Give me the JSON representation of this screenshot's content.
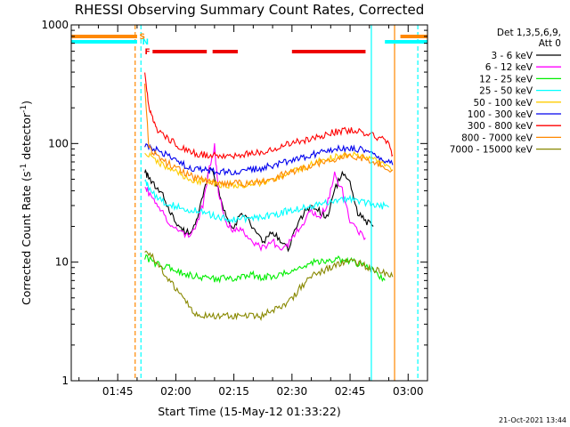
{
  "chart_data": {
    "type": "line",
    "title": "RHESSI Observing Summary Count Rates, Corrected",
    "xlabel": "Start Time (15-May-12 01:33:22)",
    "ylabel_prefix": "Corrected Count Rate (s",
    "ylabel_mid": " detector",
    "ylabel_suffix": ")",
    "ylabel_exp": "-1",
    "yscale": "log",
    "ylim": [
      1,
      1000
    ],
    "y_ticks": [
      1,
      10,
      100,
      1000
    ],
    "y_tick_labels": [
      "1",
      "10",
      "100",
      "1000"
    ],
    "xlim_minutes": [
      0,
      92
    ],
    "x_tick_minutes": [
      12,
      27,
      42,
      57,
      72,
      87
    ],
    "x_tick_labels": [
      "01:45",
      "02:00",
      "02:15",
      "02:30",
      "02:45",
      "03:00"
    ],
    "timestamp": "21-Oct-2021 13:44",
    "legend_title": "Det 1,3,5,6,9,",
    "legend_subtitle": "Att 0",
    "series": [
      {
        "name": "3 - 6 keV",
        "color": "#000000",
        "x": [
          19,
          20,
          22,
          24,
          26,
          28,
          30,
          32,
          34,
          36,
          38,
          40,
          42,
          44,
          46,
          48,
          50,
          52,
          54,
          56,
          58,
          60,
          62,
          64,
          66,
          68,
          70,
          72,
          74,
          76,
          78
        ],
        "y": [
          60,
          50,
          42,
          35,
          25,
          19,
          18,
          20,
          35,
          65,
          40,
          24,
          20,
          26,
          22,
          17,
          15,
          18,
          15,
          13,
          19,
          26,
          30,
          27,
          24,
          40,
          58,
          45,
          26,
          22,
          20
        ]
      },
      {
        "name": "6 - 12 keV",
        "color": "#ff00ff",
        "x": [
          19,
          20,
          22,
          24,
          26,
          28,
          30,
          32,
          34,
          36,
          37,
          38,
          40,
          42,
          44,
          46,
          48,
          50,
          52,
          54,
          56,
          58,
          60,
          62,
          64,
          66,
          68,
          70,
          72,
          74,
          76
        ],
        "y": [
          45,
          38,
          30,
          25,
          20,
          18,
          17,
          19,
          30,
          70,
          95,
          40,
          22,
          18,
          19,
          16,
          14,
          13,
          15,
          13,
          14,
          18,
          22,
          27,
          24,
          30,
          55,
          40,
          22,
          18,
          16
        ]
      },
      {
        "name": "12 - 25 keV",
        "color": "#00ee00",
        "x": [
          19,
          21,
          23,
          25,
          27,
          29,
          31,
          33,
          35,
          37,
          39,
          41,
          43,
          45,
          47,
          49,
          51,
          53,
          55,
          57,
          59,
          61,
          63,
          65,
          67,
          69,
          71,
          73,
          75,
          77,
          79,
          81
        ],
        "y": [
          11,
          10,
          9.5,
          9,
          8.5,
          8,
          7.8,
          7.5,
          7.2,
          7.2,
          7.3,
          7.3,
          7.5,
          7.5,
          7.8,
          7.5,
          7.5,
          7.5,
          8,
          8.5,
          9,
          9.5,
          10,
          10,
          10.5,
          10.5,
          10.3,
          10,
          9.5,
          9,
          8,
          7
        ]
      },
      {
        "name": "25 - 50 keV",
        "color": "#00ffff",
        "x": [
          19,
          20,
          22,
          24,
          26,
          28,
          30,
          32,
          34,
          36,
          38,
          40,
          42,
          44,
          46,
          48,
          50,
          52,
          54,
          56,
          58,
          60,
          62,
          64,
          66,
          68,
          70,
          72,
          74,
          76,
          78,
          80,
          82
        ],
        "y": [
          50,
          42,
          36,
          32,
          30,
          29,
          28,
          27,
          26,
          25,
          24,
          23.5,
          23,
          23,
          23.5,
          24,
          24.5,
          25,
          26,
          27,
          28,
          29,
          30,
          31,
          32,
          33,
          34,
          34,
          33,
          32,
          31,
          30,
          29
        ]
      },
      {
        "name": "50 - 100 keV",
        "color": "#ffcc00",
        "x": [
          19,
          21,
          23,
          25,
          27,
          29,
          31,
          33,
          35,
          37,
          39,
          41,
          43,
          45,
          47,
          49,
          51,
          53,
          55,
          57,
          59,
          61,
          63,
          65,
          67,
          69,
          71,
          73,
          75,
          77,
          79,
          81,
          83
        ],
        "y": [
          85,
          75,
          68,
          62,
          57,
          53,
          50,
          48,
          47,
          46,
          45,
          45,
          45,
          45,
          46,
          47,
          49,
          51,
          54,
          57,
          60,
          64,
          68,
          72,
          75,
          78,
          80,
          80,
          78,
          75,
          70,
          65,
          60
        ]
      },
      {
        "name": "100 - 300 keV",
        "color": "#0000ee",
        "x": [
          19,
          21,
          23,
          25,
          27,
          29,
          31,
          33,
          35,
          37,
          39,
          41,
          43,
          45,
          47,
          49,
          51,
          53,
          55,
          57,
          59,
          61,
          63,
          65,
          67,
          69,
          71,
          73,
          75,
          77,
          79,
          81,
          83
        ],
        "y": [
          95,
          90,
          85,
          78,
          72,
          66,
          62,
          60,
          59,
          58,
          58,
          58,
          58,
          59,
          60,
          62,
          64,
          67,
          70,
          73,
          76,
          79,
          82,
          85,
          88,
          90,
          91,
          90,
          88,
          84,
          78,
          72,
          66
        ]
      },
      {
        "name": "300 - 800 keV",
        "color": "#ff0000",
        "x": [
          19,
          20,
          21,
          22,
          24,
          26,
          28,
          30,
          32,
          34,
          36,
          38,
          40,
          42,
          44,
          46,
          48,
          50,
          52,
          54,
          56,
          58,
          60,
          62,
          64,
          66,
          68,
          70,
          72,
          74,
          76,
          78,
          80,
          82,
          83
        ],
        "y": [
          400,
          200,
          160,
          130,
          115,
          105,
          95,
          88,
          82,
          80,
          79,
          79,
          79,
          80,
          80,
          82,
          84,
          87,
          90,
          94,
          98,
          102,
          106,
          110,
          115,
          120,
          125,
          128,
          130,
          128,
          123,
          117,
          110,
          103,
          80
        ]
      },
      {
        "name": "800 - 7000 keV",
        "color": "#ff8800",
        "x": [
          19,
          20,
          21,
          23,
          25,
          27,
          29,
          31,
          33,
          35,
          37,
          39,
          41,
          43,
          45,
          47,
          49,
          51,
          53,
          55,
          57,
          59,
          61,
          63,
          65,
          67,
          69,
          71,
          73,
          75,
          77,
          79,
          81,
          83
        ],
        "y": [
          320,
          95,
          85,
          75,
          68,
          62,
          57,
          53,
          50,
          48,
          47,
          46,
          46,
          46,
          46,
          47,
          48,
          50,
          52,
          55,
          58,
          61,
          64,
          67,
          70,
          73,
          76,
          78,
          78,
          76,
          73,
          69,
          64,
          60
        ]
      },
      {
        "name": "7000 - 15000 keV",
        "color": "#888800",
        "x": [
          19,
          21,
          23,
          25,
          27,
          29,
          31,
          33,
          35,
          37,
          39,
          41,
          43,
          45,
          47,
          49,
          51,
          53,
          55,
          57,
          59,
          61,
          63,
          65,
          67,
          69,
          71,
          73,
          75,
          77,
          79,
          81,
          83
        ],
        "y": [
          12,
          11,
          9,
          7,
          6,
          5,
          4,
          3.5,
          3.5,
          3.5,
          3.5,
          3.5,
          3.5,
          3.5,
          3.5,
          3.5,
          3.8,
          4,
          4.3,
          5,
          6,
          7,
          8,
          8.5,
          9,
          9.5,
          10,
          10,
          9.5,
          9,
          8.5,
          8,
          7.5
        ]
      }
    ],
    "flags": [
      {
        "code": "S",
        "color": "#ff8800",
        "spans_minutes": [
          [
            0,
            17
          ],
          [
            85,
            92
          ]
        ]
      },
      {
        "code": "N",
        "color": "#00ffff",
        "spans_minutes": [
          [
            0,
            17
          ],
          [
            81,
            92
          ]
        ]
      },
      {
        "code": "F",
        "color": "#ee0000",
        "spans_minutes": [
          [
            21,
            35
          ],
          [
            36.5,
            43
          ],
          [
            57,
            76
          ]
        ]
      }
    ],
    "vertical_markers_minutes": [
      {
        "x": 16.5,
        "color": "#ff8800",
        "style": "dashed"
      },
      {
        "x": 18,
        "color": "#00ffff",
        "style": "dashed"
      },
      {
        "x": 77.5,
        "color": "#00ffff",
        "style": "solid"
      },
      {
        "x": 83.5,
        "color": "#ff8800",
        "style": "solid"
      },
      {
        "x": 89.5,
        "color": "#00ffff",
        "style": "dashed"
      }
    ]
  }
}
